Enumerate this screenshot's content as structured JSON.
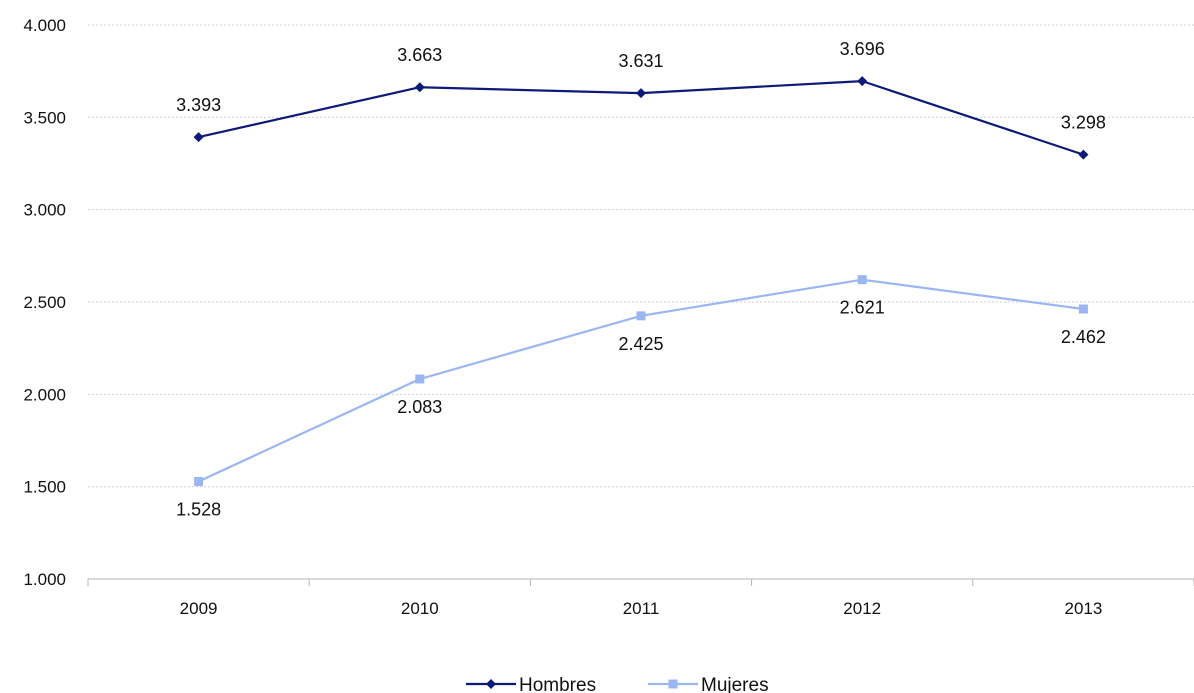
{
  "chart_data": {
    "type": "line",
    "categories": [
      "2009",
      "2010",
      "2011",
      "2012",
      "2013"
    ],
    "y_ticks": [
      "1.000",
      "1.500",
      "2.000",
      "2.500",
      "3.000",
      "3.500",
      "4.000"
    ],
    "ylim": [
      1000,
      4000
    ],
    "grid": true,
    "legend_position": "bottom",
    "series": [
      {
        "name": "Hombres",
        "color": "#0d1a78",
        "marker": "diamond",
        "values": [
          3393,
          3663,
          3631,
          3696,
          3298
        ],
        "labels": [
          "3.393",
          "3.663",
          "3.631",
          "3.696",
          "3.298"
        ]
      },
      {
        "name": "Mujeres",
        "color": "#9bb7f2",
        "marker": "square",
        "values": [
          1528,
          2083,
          2425,
          2621,
          2462
        ],
        "labels": [
          "1.528",
          "2.083",
          "2.425",
          "2.621",
          "2.462"
        ]
      }
    ]
  }
}
